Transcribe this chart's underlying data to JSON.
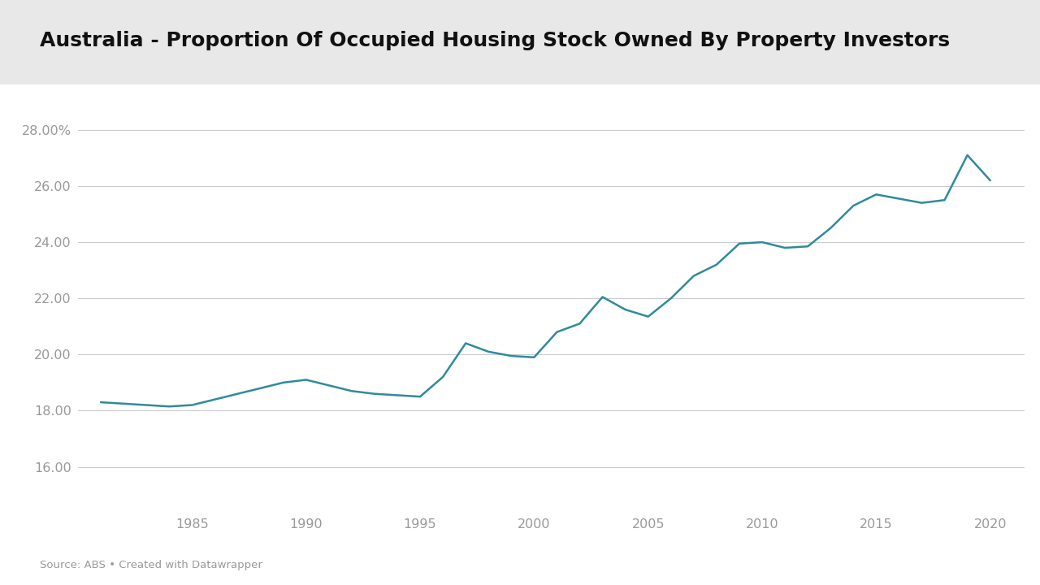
{
  "title": "Australia - Proportion Of Occupied Housing Stock Owned By Property Investors",
  "source_text": "Source: ABS • Created with Datawrapper",
  "line_color": "#2E8B9A",
  "background_color": "#ffffff",
  "title_bg_color": "#e8e8e8",
  "grid_color": "#cccccc",
  "tick_label_color": "#999999",
  "title_color": "#111111",
  "years": [
    1981,
    1982,
    1983,
    1984,
    1985,
    1986,
    1987,
    1988,
    1989,
    1990,
    1991,
    1992,
    1993,
    1994,
    1995,
    1996,
    1997,
    1998,
    1999,
    2000,
    2001,
    2002,
    2003,
    2004,
    2005,
    2006,
    2007,
    2008,
    2009,
    2010,
    2011,
    2012,
    2013,
    2014,
    2015,
    2016,
    2017,
    2018,
    2019,
    2020
  ],
  "values": [
    18.3,
    18.25,
    18.2,
    18.15,
    18.2,
    18.4,
    18.6,
    18.8,
    19.0,
    19.1,
    18.9,
    18.7,
    18.6,
    18.55,
    18.5,
    19.2,
    20.4,
    20.1,
    19.95,
    19.9,
    20.8,
    21.1,
    22.05,
    21.6,
    21.35,
    22.0,
    22.8,
    23.2,
    23.95,
    24.0,
    23.8,
    23.85,
    24.5,
    25.3,
    25.7,
    25.55,
    25.4,
    25.5,
    27.1,
    26.2
  ],
  "ylim": [
    14.5,
    29.5
  ],
  "yticks": [
    16.0,
    18.0,
    20.0,
    22.0,
    24.0,
    26.0,
    28.0
  ],
  "xticks": [
    1985,
    1990,
    1995,
    2000,
    2005,
    2010,
    2015,
    2020
  ],
  "xlim": [
    1980,
    2021.5
  ],
  "line_width": 1.8,
  "title_fontsize": 18,
  "tick_fontsize": 11.5,
  "source_fontsize": 9.5
}
